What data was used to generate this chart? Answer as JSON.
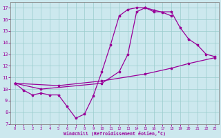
{
  "xlabel": "Windchill (Refroidissement éolien,°C)",
  "xlim": [
    -0.5,
    23.5
  ],
  "ylim": [
    7,
    17.5
  ],
  "xticks": [
    0,
    1,
    2,
    3,
    4,
    5,
    6,
    7,
    8,
    9,
    10,
    11,
    12,
    13,
    14,
    15,
    16,
    17,
    18,
    19,
    20,
    21,
    22,
    23
  ],
  "yticks": [
    7,
    8,
    9,
    10,
    11,
    12,
    13,
    14,
    15,
    16,
    17
  ],
  "line_color": "#990099",
  "bg_color": "#cce8ee",
  "grid_color": "#99cccc",
  "curves": [
    {
      "x": [
        0,
        1,
        2,
        3,
        4,
        5,
        6,
        7,
        8,
        9,
        10,
        11,
        12,
        13,
        14,
        15,
        16,
        17,
        18
      ],
      "y": [
        10.5,
        9.9,
        9.5,
        9.65,
        9.5,
        9.5,
        8.5,
        7.5,
        7.85,
        9.4,
        11.5,
        13.8,
        16.3,
        16.85,
        17.0,
        17.0,
        16.8,
        16.6,
        16.3
      ]
    },
    {
      "x": [
        0,
        3,
        10,
        12,
        13,
        14,
        15,
        16,
        18,
        19,
        20,
        21,
        22,
        23
      ],
      "y": [
        10.5,
        10.0,
        10.5,
        11.5,
        13.0,
        16.65,
        17.0,
        16.65,
        16.65,
        15.3,
        14.3,
        13.8,
        13.0,
        12.8
      ]
    },
    {
      "x": [
        0,
        5,
        10,
        15,
        18,
        20,
        23
      ],
      "y": [
        10.5,
        10.3,
        10.7,
        11.3,
        11.8,
        12.2,
        12.7
      ]
    }
  ]
}
